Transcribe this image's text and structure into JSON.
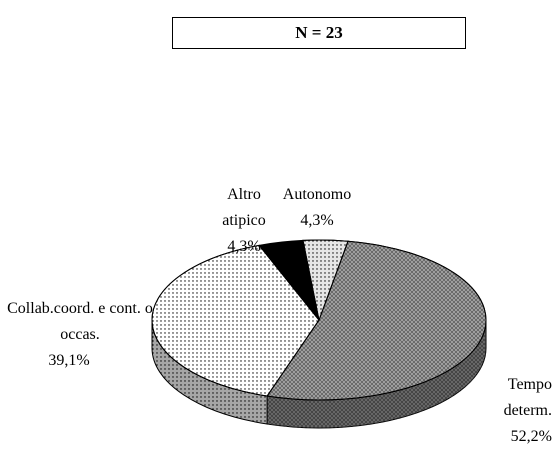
{
  "chart_data": {
    "type": "pie",
    "title": "N = 23",
    "categories": [
      "Tempo determ.",
      "Collab.coord. e cont. o occas.",
      "Altro atipico",
      "Autonomo"
    ],
    "values": [
      52.2,
      39.1,
      4.3,
      4.3
    ],
    "value_labels": [
      "52,2%",
      "39,1%",
      "4,3%",
      "4,3%"
    ],
    "colors": [
      "#a8a8a8",
      "#ffffff",
      "#000000",
      "#e6e6e6"
    ],
    "three_d": true
  }
}
